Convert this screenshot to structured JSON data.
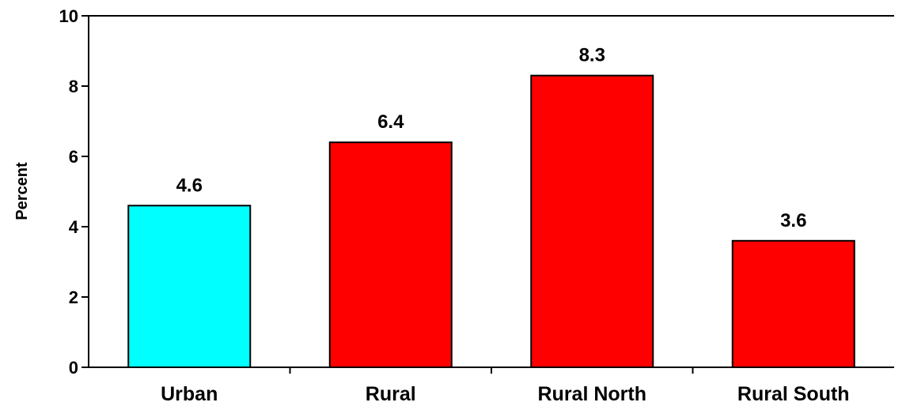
{
  "chart_data": {
    "type": "bar",
    "categories": [
      "Urban",
      "Rural",
      "Rural North",
      "Rural South"
    ],
    "values": [
      4.6,
      6.4,
      8.3,
      3.6
    ],
    "data_labels": [
      "4.6",
      "6.4",
      "8.3",
      "3.6"
    ],
    "bar_colors": [
      "#00FFFF",
      "#FF0000",
      "#FF0000",
      "#FF0000"
    ],
    "title": "",
    "xlabel": "",
    "ylabel": "Percent",
    "ylim": [
      0,
      10
    ],
    "yticks": [
      0,
      2,
      4,
      6,
      8,
      10
    ],
    "ytick_labels": [
      "0",
      "2",
      "4",
      "6",
      "8",
      "10"
    ],
    "grid": false,
    "legend": "none"
  }
}
